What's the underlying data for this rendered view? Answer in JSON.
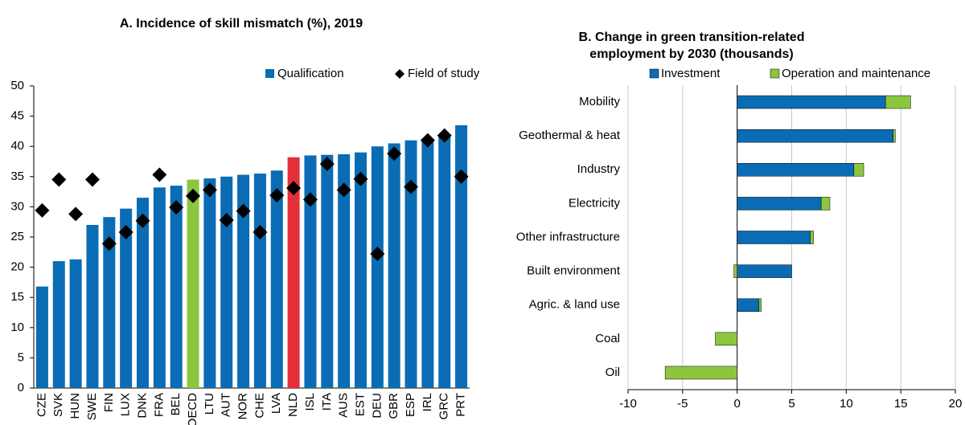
{
  "chart_data": [
    {
      "type": "bar",
      "title": "A. Incidence of skill mismatch (%), 2019",
      "categories": [
        "CZE",
        "SVK",
        "HUN",
        "SWE",
        "FIN",
        "LUX",
        "DNK",
        "FRA",
        "BEL",
        "OECD",
        "LTU",
        "AUT",
        "NOR",
        "CHE",
        "LVA",
        "NLD",
        "ISL",
        "ITA",
        "AUS",
        "EST",
        "DEU",
        "GBR",
        "ESP",
        "IRL",
        "GRC",
        "PRT"
      ],
      "series": [
        {
          "name": "Qualification",
          "type": "bar",
          "color": "#0a6cb4",
          "colors": [
            "#0a6cb4",
            "#0a6cb4",
            "#0a6cb4",
            "#0a6cb4",
            "#0a6cb4",
            "#0a6cb4",
            "#0a6cb4",
            "#0a6cb4",
            "#0a6cb4",
            "#8cc63f",
            "#0a6cb4",
            "#0a6cb4",
            "#0a6cb4",
            "#0a6cb4",
            "#0a6cb4",
            "#e2303a",
            "#0a6cb4",
            "#0a6cb4",
            "#0a6cb4",
            "#0a6cb4",
            "#0a6cb4",
            "#0a6cb4",
            "#0a6cb4",
            "#0a6cb4",
            "#0a6cb4",
            "#0a6cb4"
          ],
          "values": [
            16.8,
            21,
            21.3,
            27,
            28.3,
            29.7,
            31.5,
            33.2,
            33.5,
            34.5,
            34.7,
            35,
            35.3,
            35.5,
            36,
            38.2,
            38.5,
            38.6,
            38.7,
            39,
            40,
            40.5,
            41,
            41.3,
            42,
            43.5
          ]
        },
        {
          "name": "Field of study",
          "type": "scatter",
          "color": "#000000",
          "values": [
            29.4,
            34.5,
            28.8,
            34.5,
            23.9,
            25.8,
            27.7,
            35.3,
            29.9,
            31.8,
            32.8,
            27.8,
            29.3,
            25.8,
            31.9,
            33.1,
            31.2,
            37.1,
            32.8,
            34.6,
            22.2,
            38.8,
            33.3,
            41,
            41.8,
            35
          ]
        }
      ],
      "ylim": [
        0,
        50
      ],
      "yticks": [
        0,
        5,
        10,
        15,
        20,
        25,
        30,
        35,
        40,
        45,
        50
      ],
      "grid": false
    },
    {
      "type": "barh",
      "stacked": true,
      "title": [
        "B. Change in green transition-related",
        "employment  by 2030 (thousands)"
      ],
      "categories": [
        "Mobility",
        "Geothermal & heat",
        "Industry",
        "Electricity",
        "Other infrastructure",
        "Built environment",
        "Agric. & land use",
        "Coal",
        "Oil"
      ],
      "series": [
        {
          "name": "Investment",
          "color": "#0a6cb4",
          "values": [
            13.6,
            14.3,
            10.7,
            7.7,
            6.7,
            5,
            2,
            0,
            0
          ]
        },
        {
          "name": "Operation and maintenance",
          "color": "#8cc63f",
          "values": [
            2.3,
            0.2,
            0.9,
            0.8,
            0.3,
            -0.3,
            0.2,
            -2,
            -6.6
          ]
        }
      ],
      "xlim": [
        -10,
        20
      ],
      "xticks": [
        -10,
        -5,
        0,
        5,
        10,
        15,
        20
      ],
      "grid": true
    }
  ]
}
